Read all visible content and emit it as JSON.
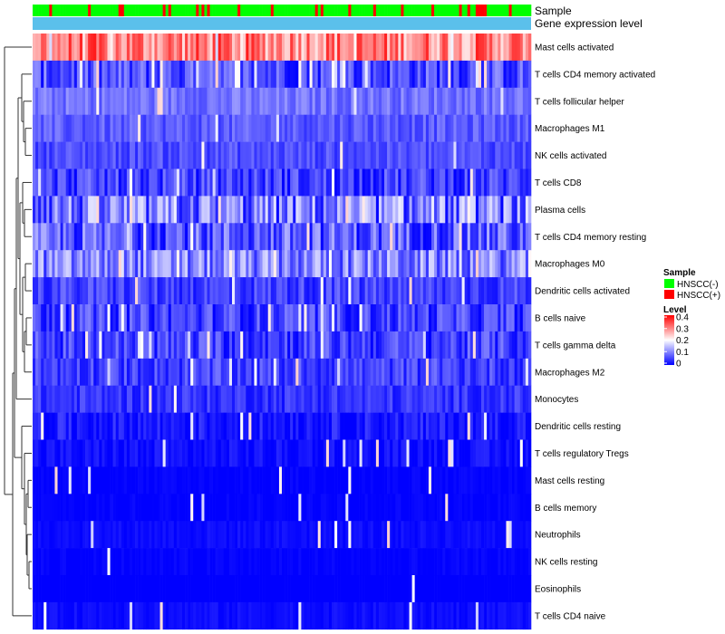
{
  "chart_data": {
    "type": "heatmap",
    "title": "",
    "xlabel": "",
    "ylabel": "",
    "annotation_tracks": [
      {
        "name": "Sample"
      },
      {
        "name": "Gene expression level"
      }
    ],
    "rows": [
      {
        "label": "Mast cells activated",
        "level": 0.3,
        "var": 0.08,
        "white_streak": 0.04
      },
      {
        "label": "T cells CD4 memory activated",
        "level": 0.06,
        "var": 0.06,
        "white_streak": 0.1
      },
      {
        "label": "T cells follicular helper",
        "level": 0.09,
        "var": 0.03,
        "white_streak": 0.03
      },
      {
        "label": "Macrophages M1",
        "level": 0.07,
        "var": 0.03,
        "white_streak": 0.02
      },
      {
        "label": "NK cells activated",
        "level": 0.06,
        "var": 0.03,
        "white_streak": 0.02
      },
      {
        "label": "T cells CD8",
        "level": 0.05,
        "var": 0.05,
        "white_streak": 0.04
      },
      {
        "label": "Plasma cells",
        "level": 0.09,
        "var": 0.09,
        "white_streak": 0.06
      },
      {
        "label": "T cells CD4 memory resting",
        "level": 0.07,
        "var": 0.07,
        "white_streak": 0.05
      },
      {
        "label": "Macrophages M0",
        "level": 0.1,
        "var": 0.07,
        "white_streak": 0.06
      },
      {
        "label": "Dendritic cells activated",
        "level": 0.05,
        "var": 0.04,
        "white_streak": 0.04
      },
      {
        "label": "B cells naive",
        "level": 0.05,
        "var": 0.05,
        "white_streak": 0.04
      },
      {
        "label": "T cells gamma delta",
        "level": 0.05,
        "var": 0.05,
        "white_streak": 0.04
      },
      {
        "label": "Macrophages M2",
        "level": 0.05,
        "var": 0.04,
        "white_streak": 0.03
      },
      {
        "label": "Monocytes",
        "level": 0.04,
        "var": 0.03,
        "white_streak": 0.02
      },
      {
        "label": "Dendritic cells resting",
        "level": 0.02,
        "var": 0.03,
        "white_streak": 0.03
      },
      {
        "label": "T cells regulatory  Tregs",
        "level": 0.01,
        "var": 0.02,
        "white_streak": 0.03
      },
      {
        "label": "Mast cells resting",
        "level": 0.0,
        "var": 0.01,
        "white_streak": 0.02
      },
      {
        "label": "B cells memory",
        "level": 0.0,
        "var": 0.01,
        "white_streak": 0.02
      },
      {
        "label": "Neutrophils",
        "level": 0.01,
        "var": 0.01,
        "white_streak": 0.03
      },
      {
        "label": "NK cells resting",
        "level": 0.0,
        "var": 0.01,
        "white_streak": 0.01
      },
      {
        "label": "Eosinophils",
        "level": 0.0,
        "var": 0.0,
        "white_streak": 0.01
      },
      {
        "label": "T cells CD4 naive",
        "level": 0.01,
        "var": 0.01,
        "white_streak": 0.06
      }
    ],
    "columns": 180,
    "sample_groups": [
      {
        "name": "HNSCC(-)",
        "color": "#00ff00",
        "share": 0.82
      },
      {
        "name": "HNSCC(+)",
        "color": "#ff0000",
        "share": 0.18
      }
    ],
    "gene_expression_color": "#5bc0eb",
    "color_scale": {
      "title": "Level",
      "min": 0,
      "max": 0.4,
      "ticks": [
        {
          "value": 0.4,
          "label": "0.4"
        },
        {
          "value": 0.3,
          "label": "0.3"
        },
        {
          "value": 0.2,
          "label": "0.2"
        },
        {
          "value": 0.1,
          "label": "0.1"
        },
        {
          "value": 0,
          "label": "0"
        }
      ],
      "colors": {
        "low": "#0000ff",
        "mid": "#ffffff",
        "high": "#ff0000",
        "mid_value": 0.2
      }
    },
    "legend": {
      "sample_title": "Sample",
      "level_title": "Level",
      "placement": "right"
    }
  }
}
